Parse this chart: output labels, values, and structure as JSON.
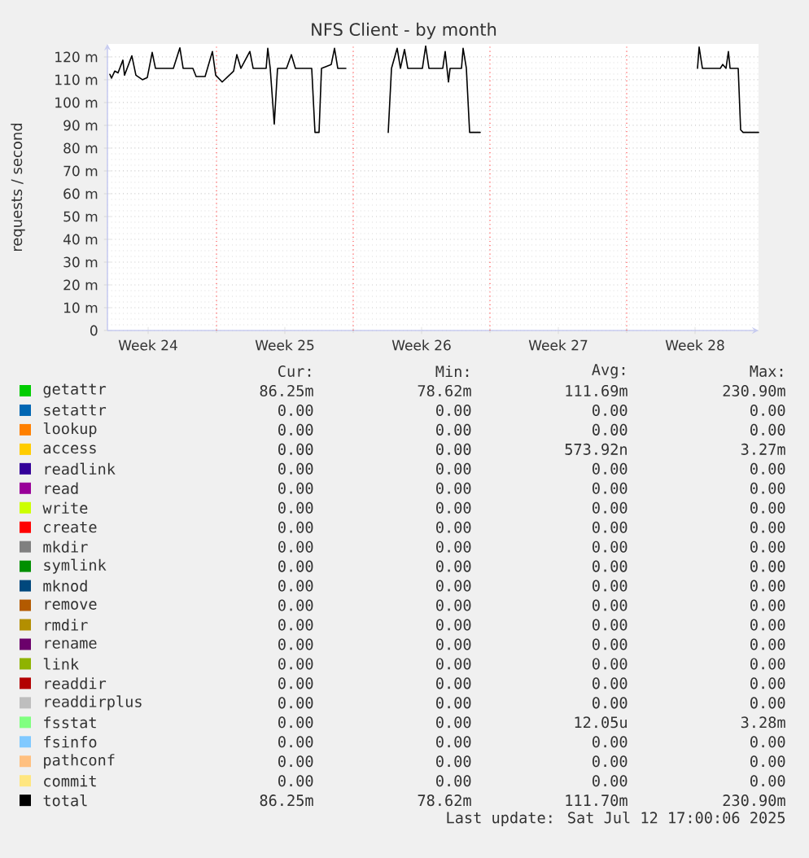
{
  "chart_data": {
    "type": "line",
    "title": "NFS Client - by month",
    "ylabel": "requests / second",
    "x": [
      "2025-06-10T13:00",
      "2025-06-10T15:00",
      "2025-06-10T19:00",
      "2025-06-10T23:00",
      "2025-06-11T05:00",
      "2025-06-11T07:00",
      "2025-06-11T16:00",
      "2025-06-11T21:00",
      "2025-06-12T05:00",
      "2025-06-12T11:00",
      "2025-06-12T17:00",
      "2025-06-12T21:00",
      "2025-06-13T19:00",
      "2025-06-14T03:00",
      "2025-06-14T07:00",
      "2025-06-14T19:00",
      "2025-06-14T23:00",
      "2025-06-15T10:00",
      "2025-06-15T19:00",
      "2025-06-15T23:00",
      "2025-06-16T07:00",
      "2025-06-16T21:00",
      "2025-06-17T01:00",
      "2025-06-17T06:00",
      "2025-06-17T17:00",
      "2025-06-17T21:00",
      "2025-06-18T13:00",
      "2025-06-18T15:00",
      "2025-06-18T18:00",
      "2025-06-18T23:00",
      "2025-06-19T03:00",
      "2025-06-19T14:00",
      "2025-06-19T20:00",
      "2025-06-20T01:00",
      "2025-06-20T21:00",
      "2025-06-21T01:00",
      "2025-06-21T06:00",
      "2025-06-21T09:00",
      "2025-06-21T21:00",
      "2025-06-22T01:00",
      "2025-06-22T05:00",
      "2025-06-22T15:00",
      "2025-06-23T00:00",
      "2025-06-24T19:00",
      "2025-06-24T23:00",
      "2025-06-25T06:00",
      "2025-06-25T10:00",
      "2025-06-25T15:00",
      "2025-06-25T19:00",
      "2025-06-26T13:00",
      "2025-06-26T17:00",
      "2025-06-26T21:00",
      "2025-06-27T14:00",
      "2025-06-27T17:00",
      "2025-06-27T21:00",
      "2025-06-27T23:00",
      "2025-06-28T13:00",
      "2025-06-28T15:00",
      "2025-06-28T19:00",
      "2025-06-28T23:00",
      "2025-06-29T12:00",
      "2025-07-01T00:00",
      "2025-07-10T15:00",
      "2025-07-10T17:00",
      "2025-07-10T21:00",
      "2025-07-11T19:00",
      "2025-07-11T22:00",
      "2025-07-12T02:00",
      "2025-07-12T05:00",
      "2025-07-12T07:00",
      "2025-07-12T17:00",
      "2025-07-12T20:00",
      "2025-07-12T23:00",
      "2025-07-13T18:00"
    ],
    "xlim": [
      "2025-06-10T10:00",
      "2025-07-13T18:00"
    ],
    "xticks": [
      {
        "value": "2025-06-12T12:00",
        "label": "Week 24"
      },
      {
        "value": "2025-06-16T00:00",
        "label": null
      },
      {
        "value": "2025-06-19T12:00",
        "label": "Week 25"
      },
      {
        "value": "2025-06-23T00:00",
        "label": null
      },
      {
        "value": "2025-06-26T12:00",
        "label": "Week 26"
      },
      {
        "value": "2025-06-30T00:00",
        "label": null
      },
      {
        "value": "2025-07-03T12:00",
        "label": "Week 27"
      },
      {
        "value": "2025-07-07T00:00",
        "label": null
      },
      {
        "value": "2025-07-10T12:00",
        "label": "Week 28"
      }
    ],
    "ylim": [
      0,
      125.7
    ],
    "yticks": [
      0,
      {
        "value": 10,
        "label": "10 m"
      },
      {
        "value": 20,
        "label": "20 m"
      },
      {
        "value": 30,
        "label": "30 m"
      },
      {
        "value": 40,
        "label": "40 m"
      },
      {
        "value": 50,
        "label": "50 m"
      },
      {
        "value": 60,
        "label": "60 m"
      },
      {
        "value": 70,
        "label": "70 m"
      },
      {
        "value": 80,
        "label": "80 m"
      },
      {
        "value": 90,
        "label": "90 m"
      },
      {
        "value": 100,
        "label": "100 m"
      },
      {
        "value": 110,
        "label": "110 m"
      },
      {
        "value": 120,
        "label": "120 m"
      }
    ],
    "grid": true,
    "legend": "bottom",
    "series": [
      {
        "name": "getattr",
        "color": "#00cc00",
        "values": [
          null,
          null,
          null,
          null,
          null,
          null,
          null,
          null,
          null,
          null,
          null,
          null,
          null,
          null,
          null,
          null,
          null,
          null,
          null,
          null,
          null,
          null,
          null,
          null,
          null,
          null,
          null,
          null,
          null,
          null,
          null,
          null,
          null,
          null,
          null,
          null,
          null,
          null,
          null,
          null,
          null,
          null,
          null,
          null,
          null,
          null,
          null,
          null,
          null,
          null,
          null,
          null,
          null,
          null,
          null,
          null,
          null,
          null,
          null,
          null,
          null,
          null,
          null,
          null,
          null,
          null,
          null,
          null,
          null,
          null,
          null,
          null,
          null,
          null
        ]
      },
      {
        "name": "setattr",
        "color": "#0066b3",
        "values": [
          null,
          null,
          null,
          null,
          null,
          null,
          null,
          null,
          null,
          null,
          null,
          null,
          null,
          null,
          null,
          null,
          null,
          null,
          null,
          null,
          null,
          null,
          null,
          null,
          null,
          null,
          null,
          null,
          null,
          null,
          null,
          null,
          null,
          null,
          null,
          null,
          null,
          null,
          null,
          null,
          null,
          null,
          null,
          null,
          null,
          null,
          null,
          null,
          null,
          null,
          null,
          null,
          null,
          null,
          null,
          null,
          null,
          null,
          null,
          null,
          null,
          null,
          null,
          null,
          null,
          null,
          null,
          null,
          null,
          null,
          null,
          null,
          null,
          null
        ]
      },
      {
        "name": "lookup",
        "color": "#ff8000",
        "values": [
          null,
          null,
          null,
          null,
          null,
          null,
          null,
          null,
          null,
          null,
          null,
          null,
          null,
          null,
          null,
          null,
          null,
          null,
          null,
          null,
          null,
          null,
          null,
          null,
          null,
          null,
          null,
          null,
          null,
          null,
          null,
          null,
          null,
          null,
          null,
          null,
          null,
          null,
          null,
          null,
          null,
          null,
          null,
          null,
          null,
          null,
          null,
          null,
          null,
          null,
          null,
          null,
          null,
          null,
          null,
          null,
          null,
          null,
          null,
          null,
          null,
          null,
          null,
          null,
          null,
          null,
          null,
          null,
          null,
          null,
          null,
          null,
          null,
          null
        ]
      },
      {
        "name": "access",
        "color": "#ffcc00",
        "values": [
          null,
          null,
          null,
          null,
          null,
          null,
          null,
          null,
          null,
          null,
          null,
          null,
          null,
          null,
          null,
          null,
          null,
          null,
          null,
          null,
          null,
          null,
          null,
          null,
          null,
          null,
          null,
          null,
          null,
          null,
          null,
          null,
          null,
          null,
          null,
          null,
          null,
          null,
          null,
          null,
          null,
          null,
          null,
          null,
          null,
          null,
          null,
          null,
          null,
          null,
          null,
          null,
          null,
          null,
          null,
          null,
          null,
          null,
          null,
          null,
          null,
          null,
          null,
          null,
          null,
          null,
          null,
          null,
          null,
          null,
          null,
          null,
          null,
          null
        ]
      },
      {
        "name": "readlink",
        "color": "#330099",
        "values": [
          null,
          null,
          null,
          null,
          null,
          null,
          null,
          null,
          null,
          null,
          null,
          null,
          null,
          null,
          null,
          null,
          null,
          null,
          null,
          null,
          null,
          null,
          null,
          null,
          null,
          null,
          null,
          null,
          null,
          null,
          null,
          null,
          null,
          null,
          null,
          null,
          null,
          null,
          null,
          null,
          null,
          null,
          null,
          null,
          null,
          null,
          null,
          null,
          null,
          null,
          null,
          null,
          null,
          null,
          null,
          null,
          null,
          null,
          null,
          null,
          null,
          null,
          null,
          null,
          null,
          null,
          null,
          null,
          null,
          null,
          null,
          null,
          null,
          null
        ]
      },
      {
        "name": "read",
        "color": "#990099",
        "values": [
          null,
          null,
          null,
          null,
          null,
          null,
          null,
          null,
          null,
          null,
          null,
          null,
          null,
          null,
          null,
          null,
          null,
          null,
          null,
          null,
          null,
          null,
          null,
          null,
          null,
          null,
          null,
          null,
          null,
          null,
          null,
          null,
          null,
          null,
          null,
          null,
          null,
          null,
          null,
          null,
          null,
          null,
          null,
          null,
          null,
          null,
          null,
          null,
          null,
          null,
          null,
          null,
          null,
          null,
          null,
          null,
          null,
          null,
          null,
          null,
          null,
          null,
          null,
          null,
          null,
          null,
          null,
          null,
          null,
          null,
          null,
          null,
          null,
          null
        ]
      },
      {
        "name": "write",
        "color": "#ccff00",
        "values": [
          null,
          null,
          null,
          null,
          null,
          null,
          null,
          null,
          null,
          null,
          null,
          null,
          null,
          null,
          null,
          null,
          null,
          null,
          null,
          null,
          null,
          null,
          null,
          null,
          null,
          null,
          null,
          null,
          null,
          null,
          null,
          null,
          null,
          null,
          null,
          null,
          null,
          null,
          null,
          null,
          null,
          null,
          null,
          null,
          null,
          null,
          null,
          null,
          null,
          null,
          null,
          null,
          null,
          null,
          null,
          null,
          null,
          null,
          null,
          null,
          null,
          null,
          null,
          null,
          null,
          null,
          null,
          null,
          null,
          null,
          null,
          null,
          null,
          null
        ]
      },
      {
        "name": "create",
        "color": "#ff0000",
        "values": [
          null,
          null,
          null,
          null,
          null,
          null,
          null,
          null,
          null,
          null,
          null,
          null,
          null,
          null,
          null,
          null,
          null,
          null,
          null,
          null,
          null,
          null,
          null,
          null,
          null,
          null,
          null,
          null,
          null,
          null,
          null,
          null,
          null,
          null,
          null,
          null,
          null,
          null,
          null,
          null,
          null,
          null,
          null,
          null,
          null,
          null,
          null,
          null,
          null,
          null,
          null,
          null,
          null,
          null,
          null,
          null,
          null,
          null,
          null,
          null,
          null,
          null,
          null,
          null,
          null,
          null,
          null,
          null,
          null,
          null,
          null,
          null,
          null,
          null
        ]
      },
      {
        "name": "mkdir",
        "color": "#808080",
        "values": [
          null,
          null,
          null,
          null,
          null,
          null,
          null,
          null,
          null,
          null,
          null,
          null,
          null,
          null,
          null,
          null,
          null,
          null,
          null,
          null,
          null,
          null,
          null,
          null,
          null,
          null,
          null,
          null,
          null,
          null,
          null,
          null,
          null,
          null,
          null,
          null,
          null,
          null,
          null,
          null,
          null,
          null,
          null,
          null,
          null,
          null,
          null,
          null,
          null,
          null,
          null,
          null,
          null,
          null,
          null,
          null,
          null,
          null,
          null,
          null,
          null,
          null,
          null,
          null,
          null,
          null,
          null,
          null,
          null,
          null,
          null,
          null,
          null,
          null
        ]
      },
      {
        "name": "symlink",
        "color": "#008f00",
        "values": [
          null,
          null,
          null,
          null,
          null,
          null,
          null,
          null,
          null,
          null,
          null,
          null,
          null,
          null,
          null,
          null,
          null,
          null,
          null,
          null,
          null,
          null,
          null,
          null,
          null,
          null,
          null,
          null,
          null,
          null,
          null,
          null,
          null,
          null,
          null,
          null,
          null,
          null,
          null,
          null,
          null,
          null,
          null,
          null,
          null,
          null,
          null,
          null,
          null,
          null,
          null,
          null,
          null,
          null,
          null,
          null,
          null,
          null,
          null,
          null,
          null,
          null,
          null,
          null,
          null,
          null,
          null,
          null,
          null,
          null,
          null,
          null,
          null,
          null
        ]
      },
      {
        "name": "mknod",
        "color": "#00487d",
        "values": [
          null,
          null,
          null,
          null,
          null,
          null,
          null,
          null,
          null,
          null,
          null,
          null,
          null,
          null,
          null,
          null,
          null,
          null,
          null,
          null,
          null,
          null,
          null,
          null,
          null,
          null,
          null,
          null,
          null,
          null,
          null,
          null,
          null,
          null,
          null,
          null,
          null,
          null,
          null,
          null,
          null,
          null,
          null,
          null,
          null,
          null,
          null,
          null,
          null,
          null,
          null,
          null,
          null,
          null,
          null,
          null,
          null,
          null,
          null,
          null,
          null,
          null,
          null,
          null,
          null,
          null,
          null,
          null,
          null,
          null,
          null,
          null,
          null,
          null
        ]
      },
      {
        "name": "remove",
        "color": "#b35a00",
        "values": [
          null,
          null,
          null,
          null,
          null,
          null,
          null,
          null,
          null,
          null,
          null,
          null,
          null,
          null,
          null,
          null,
          null,
          null,
          null,
          null,
          null,
          null,
          null,
          null,
          null,
          null,
          null,
          null,
          null,
          null,
          null,
          null,
          null,
          null,
          null,
          null,
          null,
          null,
          null,
          null,
          null,
          null,
          null,
          null,
          null,
          null,
          null,
          null,
          null,
          null,
          null,
          null,
          null,
          null,
          null,
          null,
          null,
          null,
          null,
          null,
          null,
          null,
          null,
          null,
          null,
          null,
          null,
          null,
          null,
          null,
          null,
          null,
          null,
          null
        ]
      },
      {
        "name": "rmdir",
        "color": "#b38f00",
        "values": [
          null,
          null,
          null,
          null,
          null,
          null,
          null,
          null,
          null,
          null,
          null,
          null,
          null,
          null,
          null,
          null,
          null,
          null,
          null,
          null,
          null,
          null,
          null,
          null,
          null,
          null,
          null,
          null,
          null,
          null,
          null,
          null,
          null,
          null,
          null,
          null,
          null,
          null,
          null,
          null,
          null,
          null,
          null,
          null,
          null,
          null,
          null,
          null,
          null,
          null,
          null,
          null,
          null,
          null,
          null,
          null,
          null,
          null,
          null,
          null,
          null,
          null,
          null,
          null,
          null,
          null,
          null,
          null,
          null,
          null,
          null,
          null,
          null,
          null
        ]
      },
      {
        "name": "rename",
        "color": "#6b006b",
        "values": [
          null,
          null,
          null,
          null,
          null,
          null,
          null,
          null,
          null,
          null,
          null,
          null,
          null,
          null,
          null,
          null,
          null,
          null,
          null,
          null,
          null,
          null,
          null,
          null,
          null,
          null,
          null,
          null,
          null,
          null,
          null,
          null,
          null,
          null,
          null,
          null,
          null,
          null,
          null,
          null,
          null,
          null,
          null,
          null,
          null,
          null,
          null,
          null,
          null,
          null,
          null,
          null,
          null,
          null,
          null,
          null,
          null,
          null,
          null,
          null,
          null,
          null,
          null,
          null,
          null,
          null,
          null,
          null,
          null,
          null,
          null,
          null,
          null,
          null
        ]
      },
      {
        "name": "link",
        "color": "#8fb300",
        "values": [
          null,
          null,
          null,
          null,
          null,
          null,
          null,
          null,
          null,
          null,
          null,
          null,
          null,
          null,
          null,
          null,
          null,
          null,
          null,
          null,
          null,
          null,
          null,
          null,
          null,
          null,
          null,
          null,
          null,
          null,
          null,
          null,
          null,
          null,
          null,
          null,
          null,
          null,
          null,
          null,
          null,
          null,
          null,
          null,
          null,
          null,
          null,
          null,
          null,
          null,
          null,
          null,
          null,
          null,
          null,
          null,
          null,
          null,
          null,
          null,
          null,
          null,
          null,
          null,
          null,
          null,
          null,
          null,
          null,
          null,
          null,
          null,
          null,
          null
        ]
      },
      {
        "name": "readdir",
        "color": "#b30000",
        "values": [
          null,
          null,
          null,
          null,
          null,
          null,
          null,
          null,
          null,
          null,
          null,
          null,
          null,
          null,
          null,
          null,
          null,
          null,
          null,
          null,
          null,
          null,
          null,
          null,
          null,
          null,
          null,
          null,
          null,
          null,
          null,
          null,
          null,
          null,
          null,
          null,
          null,
          null,
          null,
          null,
          null,
          null,
          null,
          null,
          null,
          null,
          null,
          null,
          null,
          null,
          null,
          null,
          null,
          null,
          null,
          null,
          null,
          null,
          null,
          null,
          null,
          null,
          null,
          null,
          null,
          null,
          null,
          null,
          null,
          null,
          null,
          null,
          null,
          null
        ]
      },
      {
        "name": "readdirplus",
        "color": "#bebebe",
        "values": [
          null,
          null,
          null,
          null,
          null,
          null,
          null,
          null,
          null,
          null,
          null,
          null,
          null,
          null,
          null,
          null,
          null,
          null,
          null,
          null,
          null,
          null,
          null,
          null,
          null,
          null,
          null,
          null,
          null,
          null,
          null,
          null,
          null,
          null,
          null,
          null,
          null,
          null,
          null,
          null,
          null,
          null,
          null,
          null,
          null,
          null,
          null,
          null,
          null,
          null,
          null,
          null,
          null,
          null,
          null,
          null,
          null,
          null,
          null,
          null,
          null,
          null,
          null,
          null,
          null,
          null,
          null,
          null,
          null,
          null,
          null,
          null,
          null,
          null
        ]
      },
      {
        "name": "fsstat",
        "color": "#80ff80",
        "values": [
          null,
          null,
          null,
          null,
          null,
          null,
          null,
          null,
          null,
          null,
          null,
          null,
          null,
          null,
          null,
          null,
          null,
          null,
          null,
          null,
          null,
          null,
          null,
          null,
          null,
          null,
          null,
          null,
          null,
          null,
          null,
          null,
          null,
          null,
          null,
          null,
          null,
          null,
          null,
          null,
          null,
          null,
          null,
          null,
          null,
          null,
          null,
          null,
          null,
          null,
          null,
          null,
          null,
          null,
          null,
          null,
          null,
          null,
          null,
          null,
          null,
          null,
          null,
          null,
          null,
          null,
          null,
          null,
          null,
          null,
          null,
          null,
          null,
          null
        ]
      },
      {
        "name": "fsinfo",
        "color": "#80c9ff",
        "values": [
          null,
          null,
          null,
          null,
          null,
          null,
          null,
          null,
          null,
          null,
          null,
          null,
          null,
          null,
          null,
          null,
          null,
          null,
          null,
          null,
          null,
          null,
          null,
          null,
          null,
          null,
          null,
          null,
          null,
          null,
          null,
          null,
          null,
          null,
          null,
          null,
          null,
          null,
          null,
          null,
          null,
          null,
          null,
          null,
          null,
          null,
          null,
          null,
          null,
          null,
          null,
          null,
          null,
          null,
          null,
          null,
          null,
          null,
          null,
          null,
          null,
          null,
          null,
          null,
          null,
          null,
          null,
          null,
          null,
          null,
          null,
          null,
          null,
          null
        ]
      },
      {
        "name": "pathconf",
        "color": "#ffc080",
        "values": [
          null,
          null,
          null,
          null,
          null,
          null,
          null,
          null,
          null,
          null,
          null,
          null,
          null,
          null,
          null,
          null,
          null,
          null,
          null,
          null,
          null,
          null,
          null,
          null,
          null,
          null,
          null,
          null,
          null,
          null,
          null,
          null,
          null,
          null,
          null,
          null,
          null,
          null,
          null,
          null,
          null,
          null,
          null,
          null,
          null,
          null,
          null,
          null,
          null,
          null,
          null,
          null,
          null,
          null,
          null,
          null,
          null,
          null,
          null,
          null,
          null,
          null,
          null,
          null,
          null,
          null,
          null,
          null,
          null,
          null,
          null,
          null,
          null,
          null
        ]
      },
      {
        "name": "commit",
        "color": "#ffe680",
        "values": [
          null,
          null,
          null,
          null,
          null,
          null,
          null,
          null,
          null,
          null,
          null,
          null,
          null,
          null,
          null,
          null,
          null,
          null,
          null,
          null,
          null,
          null,
          null,
          null,
          null,
          null,
          null,
          null,
          null,
          null,
          null,
          null,
          null,
          null,
          null,
          null,
          null,
          null,
          null,
          null,
          null,
          null,
          null,
          null,
          null,
          null,
          null,
          null,
          null,
          null,
          null,
          null,
          null,
          null,
          null,
          null,
          null,
          null,
          null,
          null,
          null,
          null,
          null,
          null,
          null,
          null,
          null,
          null,
          null,
          null,
          null,
          null,
          null,
          null
        ]
      },
      {
        "name": "total",
        "color": "#000000",
        "values": [
          112.4,
          110.7,
          113.8,
          113,
          118.6,
          112,
          120.5,
          112,
          110,
          111,
          122,
          115,
          115,
          124,
          115,
          115,
          111.4,
          111.4,
          122.4,
          112,
          109,
          113.8,
          121,
          115,
          122.4,
          115,
          115,
          123.8,
          115,
          90.5,
          115,
          115,
          121,
          115,
          115,
          86.9,
          86.9,
          115,
          116.7,
          123.8,
          115,
          115,
          null,
          86.9,
          115,
          123.8,
          115,
          123.3,
          115,
          115,
          124.8,
          115,
          115,
          122.4,
          109,
          115,
          115,
          123.8,
          115,
          86.9,
          86.9,
          null,
          115,
          124.3,
          115,
          115,
          116.7,
          115,
          122.4,
          115,
          115,
          88,
          86.9,
          86.9
        ]
      }
    ],
    "annotations": [
      "Cur:",
      "Min:",
      "Avg:",
      "Max:",
      "86.25m",
      "78.62m",
      "111.69m",
      "230.90m",
      "0.00",
      "0.00",
      "0.00",
      "0.00",
      "0.00",
      "0.00",
      "0.00",
      "0.00",
      "0.00",
      "0.00",
      "573.92n",
      "3.27m",
      "0.00",
      "0.00",
      "0.00",
      "0.00",
      "0.00",
      "0.00",
      "0.00",
      "0.00",
      "0.00",
      "0.00",
      "0.00",
      "0.00",
      "0.00",
      "0.00",
      "0.00",
      "0.00",
      "0.00",
      "0.00",
      "0.00",
      "0.00",
      "0.00",
      "0.00",
      "0.00",
      "0.00",
      "0.00",
      "0.00",
      "0.00",
      "0.00",
      "0.00",
      "0.00",
      "0.00",
      "0.00",
      "0.00",
      "0.00",
      "0.00",
      "0.00",
      "0.00",
      "0.00",
      "0.00",
      "0.00",
      "0.00",
      "0.00",
      "0.00",
      "0.00",
      "0.00",
      "0.00",
      "0.00",
      "0.00",
      "0.00",
      "0.00",
      "0.00",
      "0.00",
      "0.00",
      "0.00",
      "12.05u",
      "3.28m",
      "0.00",
      "0.00",
      "0.00",
      "0.00",
      "0.00",
      "0.00",
      "0.00",
      "0.00",
      "0.00",
      "0.00",
      "0.00",
      "0.00",
      "86.25m",
      "78.62m",
      "111.70m",
      "230.90m",
      "Last update: Sat Jul 12 17:00:06 2025"
    ]
  }
}
